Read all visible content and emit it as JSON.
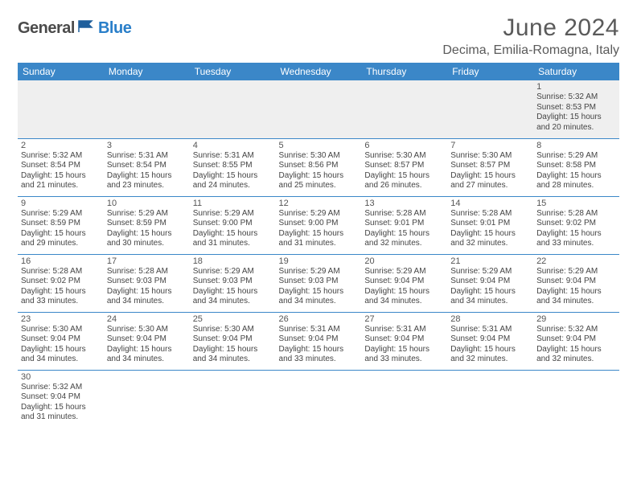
{
  "brand": {
    "part1": "General",
    "part2": "Blue"
  },
  "title": "June 2024",
  "location": "Decima, Emilia-Romagna, Italy",
  "colors": {
    "header_bg": "#3b87c8",
    "header_text": "#ffffff",
    "border": "#3b87c8",
    "brand_gray": "#4b4b4b",
    "brand_blue": "#2a7fc9"
  },
  "weekdays": [
    "Sunday",
    "Monday",
    "Tuesday",
    "Wednesday",
    "Thursday",
    "Friday",
    "Saturday"
  ],
  "cells": [
    {
      "n": "",
      "r": "",
      "s": "",
      "d": ""
    },
    {
      "n": "",
      "r": "",
      "s": "",
      "d": ""
    },
    {
      "n": "",
      "r": "",
      "s": "",
      "d": ""
    },
    {
      "n": "",
      "r": "",
      "s": "",
      "d": ""
    },
    {
      "n": "",
      "r": "",
      "s": "",
      "d": ""
    },
    {
      "n": "",
      "r": "",
      "s": "",
      "d": ""
    },
    {
      "n": "1",
      "r": "Sunrise: 5:32 AM",
      "s": "Sunset: 8:53 PM",
      "d": "Daylight: 15 hours and 20 minutes."
    },
    {
      "n": "2",
      "r": "Sunrise: 5:32 AM",
      "s": "Sunset: 8:54 PM",
      "d": "Daylight: 15 hours and 21 minutes."
    },
    {
      "n": "3",
      "r": "Sunrise: 5:31 AM",
      "s": "Sunset: 8:54 PM",
      "d": "Daylight: 15 hours and 23 minutes."
    },
    {
      "n": "4",
      "r": "Sunrise: 5:31 AM",
      "s": "Sunset: 8:55 PM",
      "d": "Daylight: 15 hours and 24 minutes."
    },
    {
      "n": "5",
      "r": "Sunrise: 5:30 AM",
      "s": "Sunset: 8:56 PM",
      "d": "Daylight: 15 hours and 25 minutes."
    },
    {
      "n": "6",
      "r": "Sunrise: 5:30 AM",
      "s": "Sunset: 8:57 PM",
      "d": "Daylight: 15 hours and 26 minutes."
    },
    {
      "n": "7",
      "r": "Sunrise: 5:30 AM",
      "s": "Sunset: 8:57 PM",
      "d": "Daylight: 15 hours and 27 minutes."
    },
    {
      "n": "8",
      "r": "Sunrise: 5:29 AM",
      "s": "Sunset: 8:58 PM",
      "d": "Daylight: 15 hours and 28 minutes."
    },
    {
      "n": "9",
      "r": "Sunrise: 5:29 AM",
      "s": "Sunset: 8:59 PM",
      "d": "Daylight: 15 hours and 29 minutes."
    },
    {
      "n": "10",
      "r": "Sunrise: 5:29 AM",
      "s": "Sunset: 8:59 PM",
      "d": "Daylight: 15 hours and 30 minutes."
    },
    {
      "n": "11",
      "r": "Sunrise: 5:29 AM",
      "s": "Sunset: 9:00 PM",
      "d": "Daylight: 15 hours and 31 minutes."
    },
    {
      "n": "12",
      "r": "Sunrise: 5:29 AM",
      "s": "Sunset: 9:00 PM",
      "d": "Daylight: 15 hours and 31 minutes."
    },
    {
      "n": "13",
      "r": "Sunrise: 5:28 AM",
      "s": "Sunset: 9:01 PM",
      "d": "Daylight: 15 hours and 32 minutes."
    },
    {
      "n": "14",
      "r": "Sunrise: 5:28 AM",
      "s": "Sunset: 9:01 PM",
      "d": "Daylight: 15 hours and 32 minutes."
    },
    {
      "n": "15",
      "r": "Sunrise: 5:28 AM",
      "s": "Sunset: 9:02 PM",
      "d": "Daylight: 15 hours and 33 minutes."
    },
    {
      "n": "16",
      "r": "Sunrise: 5:28 AM",
      "s": "Sunset: 9:02 PM",
      "d": "Daylight: 15 hours and 33 minutes."
    },
    {
      "n": "17",
      "r": "Sunrise: 5:28 AM",
      "s": "Sunset: 9:03 PM",
      "d": "Daylight: 15 hours and 34 minutes."
    },
    {
      "n": "18",
      "r": "Sunrise: 5:29 AM",
      "s": "Sunset: 9:03 PM",
      "d": "Daylight: 15 hours and 34 minutes."
    },
    {
      "n": "19",
      "r": "Sunrise: 5:29 AM",
      "s": "Sunset: 9:03 PM",
      "d": "Daylight: 15 hours and 34 minutes."
    },
    {
      "n": "20",
      "r": "Sunrise: 5:29 AM",
      "s": "Sunset: 9:04 PM",
      "d": "Daylight: 15 hours and 34 minutes."
    },
    {
      "n": "21",
      "r": "Sunrise: 5:29 AM",
      "s": "Sunset: 9:04 PM",
      "d": "Daylight: 15 hours and 34 minutes."
    },
    {
      "n": "22",
      "r": "Sunrise: 5:29 AM",
      "s": "Sunset: 9:04 PM",
      "d": "Daylight: 15 hours and 34 minutes."
    },
    {
      "n": "23",
      "r": "Sunrise: 5:30 AM",
      "s": "Sunset: 9:04 PM",
      "d": "Daylight: 15 hours and 34 minutes."
    },
    {
      "n": "24",
      "r": "Sunrise: 5:30 AM",
      "s": "Sunset: 9:04 PM",
      "d": "Daylight: 15 hours and 34 minutes."
    },
    {
      "n": "25",
      "r": "Sunrise: 5:30 AM",
      "s": "Sunset: 9:04 PM",
      "d": "Daylight: 15 hours and 34 minutes."
    },
    {
      "n": "26",
      "r": "Sunrise: 5:31 AM",
      "s": "Sunset: 9:04 PM",
      "d": "Daylight: 15 hours and 33 minutes."
    },
    {
      "n": "27",
      "r": "Sunrise: 5:31 AM",
      "s": "Sunset: 9:04 PM",
      "d": "Daylight: 15 hours and 33 minutes."
    },
    {
      "n": "28",
      "r": "Sunrise: 5:31 AM",
      "s": "Sunset: 9:04 PM",
      "d": "Daylight: 15 hours and 32 minutes."
    },
    {
      "n": "29",
      "r": "Sunrise: 5:32 AM",
      "s": "Sunset: 9:04 PM",
      "d": "Daylight: 15 hours and 32 minutes."
    },
    {
      "n": "30",
      "r": "Sunrise: 5:32 AM",
      "s": "Sunset: 9:04 PM",
      "d": "Daylight: 15 hours and 31 minutes."
    },
    {
      "n": "",
      "r": "",
      "s": "",
      "d": ""
    },
    {
      "n": "",
      "r": "",
      "s": "",
      "d": ""
    },
    {
      "n": "",
      "r": "",
      "s": "",
      "d": ""
    },
    {
      "n": "",
      "r": "",
      "s": "",
      "d": ""
    },
    {
      "n": "",
      "r": "",
      "s": "",
      "d": ""
    },
    {
      "n": "",
      "r": "",
      "s": "",
      "d": ""
    }
  ]
}
